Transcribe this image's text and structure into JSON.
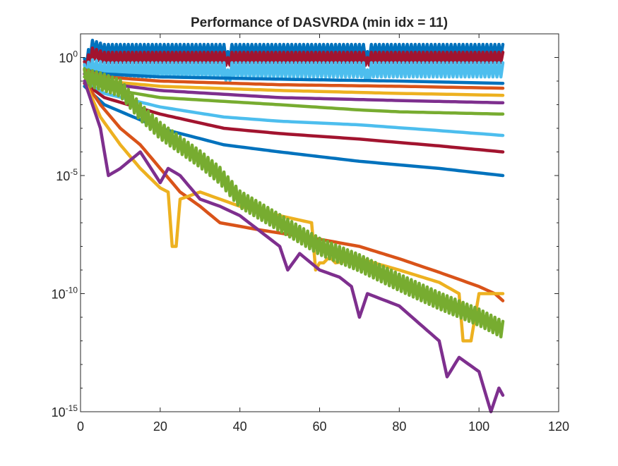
{
  "chart_data": {
    "type": "line",
    "title": "Performance of DASVRDA (min idx = 11)",
    "xlabel": "",
    "ylabel": "",
    "xlim": [
      0,
      120
    ],
    "ylim": [
      1e-15,
      10.0
    ],
    "y_scale": "log",
    "grid": false,
    "legend": "none",
    "x_ticks": [
      0,
      20,
      40,
      60,
      80,
      100,
      120
    ],
    "x_tick_labels": [
      "0",
      "20",
      "40",
      "60",
      "80",
      "100",
      "120"
    ],
    "y_ticks": [
      1e-15,
      1e-10,
      1e-05,
      1
    ],
    "y_tick_labels": [
      {
        "base": "10",
        "exp": "-15"
      },
      {
        "base": "10",
        "exp": "-10"
      },
      {
        "base": "10",
        "exp": "-5"
      },
      {
        "base": "10",
        "exp": "0"
      }
    ],
    "series": [
      {
        "color": "#0072BD",
        "oscillating": true,
        "amplitude": 0.25,
        "points": [
          [
            1,
            0.5
          ],
          [
            3,
            3
          ],
          [
            6,
            2
          ],
          [
            36,
            2
          ],
          [
            37,
            1
          ],
          [
            38,
            2
          ],
          [
            71,
            2
          ],
          [
            72,
            1
          ],
          [
            73,
            2
          ],
          [
            106,
            2
          ]
        ]
      },
      {
        "color": "#A2142F",
        "oscillating": true,
        "amplitude": 0.22,
        "points": [
          [
            1,
            0.4
          ],
          [
            3,
            1.5
          ],
          [
            6,
            1
          ],
          [
            36,
            1
          ],
          [
            37,
            0.6
          ],
          [
            38,
            1
          ],
          [
            71,
            1
          ],
          [
            72,
            0.6
          ],
          [
            73,
            1
          ],
          [
            106,
            1
          ]
        ]
      },
      {
        "color": "#4DBEEE",
        "oscillating": true,
        "amplitude": 0.3,
        "points": [
          [
            1,
            0.25
          ],
          [
            3,
            0.4
          ],
          [
            6,
            0.3
          ],
          [
            36,
            0.3
          ],
          [
            37,
            0.15
          ],
          [
            38,
            0.3
          ],
          [
            71,
            0.3
          ],
          [
            72,
            0.15
          ],
          [
            73,
            0.3
          ],
          [
            106,
            0.3
          ]
        ]
      },
      {
        "color": "#0072BD",
        "points": [
          [
            1,
            0.3
          ],
          [
            6,
            0.2
          ],
          [
            20,
            0.15
          ],
          [
            50,
            0.12
          ],
          [
            80,
            0.1
          ],
          [
            106,
            0.08
          ]
        ]
      },
      {
        "color": "#D95319",
        "points": [
          [
            1,
            0.3
          ],
          [
            6,
            0.15
          ],
          [
            20,
            0.1
          ],
          [
            50,
            0.07
          ],
          [
            80,
            0.06
          ],
          [
            106,
            0.05
          ]
        ]
      },
      {
        "color": "#EDB120",
        "points": [
          [
            1,
            0.2
          ],
          [
            6,
            0.1
          ],
          [
            20,
            0.06
          ],
          [
            50,
            0.04
          ],
          [
            80,
            0.03
          ],
          [
            106,
            0.025
          ]
        ]
      },
      {
        "color": "#7E2F8E",
        "points": [
          [
            1,
            0.2
          ],
          [
            6,
            0.08
          ],
          [
            20,
            0.04
          ],
          [
            50,
            0.02
          ],
          [
            80,
            0.015
          ],
          [
            106,
            0.012
          ]
        ]
      },
      {
        "color": "#77AC30",
        "points": [
          [
            1,
            0.15
          ],
          [
            6,
            0.05
          ],
          [
            20,
            0.02
          ],
          [
            50,
            0.01
          ],
          [
            70,
            0.006
          ],
          [
            80,
            0.005
          ],
          [
            106,
            0.004
          ]
        ]
      },
      {
        "color": "#4DBEEE",
        "points": [
          [
            1,
            0.1
          ],
          [
            6,
            0.03
          ],
          [
            20,
            0.008
          ],
          [
            36,
            0.003
          ],
          [
            50,
            0.002
          ],
          [
            70,
            0.0014
          ],
          [
            90,
            0.0008
          ],
          [
            106,
            0.0005
          ]
        ]
      },
      {
        "color": "#A2142F",
        "points": [
          [
            1,
            0.08
          ],
          [
            6,
            0.02
          ],
          [
            20,
            0.004
          ],
          [
            36,
            0.001
          ],
          [
            50,
            0.0006
          ],
          [
            70,
            0.00035
          ],
          [
            90,
            0.00018
          ],
          [
            106,
            0.0001
          ]
        ]
      },
      {
        "color": "#0072BD",
        "points": [
          [
            1,
            0.06
          ],
          [
            6,
            0.01
          ],
          [
            20,
            0.001
          ],
          [
            36,
            0.0002
          ],
          [
            50,
            0.0001
          ],
          [
            70,
            4e-05
          ],
          [
            90,
            2e-05
          ],
          [
            106,
            1e-05
          ]
        ]
      },
      {
        "color": "#D95319",
        "points": [
          [
            1,
            0.1
          ],
          [
            5,
            0.01
          ],
          [
            10,
            0.001
          ],
          [
            15,
            0.0002
          ],
          [
            20,
            2e-05
          ],
          [
            25,
            2e-06
          ],
          [
            30,
            5e-07
          ],
          [
            35,
            1e-07
          ],
          [
            45,
            5e-08
          ],
          [
            60,
            2e-08
          ],
          [
            70,
            1e-08
          ],
          [
            80,
            3e-09
          ],
          [
            90,
            8e-10
          ],
          [
            100,
            2e-10
          ],
          [
            104,
            1e-10
          ],
          [
            106,
            5e-11
          ]
        ]
      },
      {
        "color": "#EDB120",
        "points": [
          [
            1,
            0.1
          ],
          [
            5,
            0.003
          ],
          [
            10,
            0.0002
          ],
          [
            15,
            2e-05
          ],
          [
            20,
            3e-06
          ],
          [
            22,
            2e-06
          ],
          [
            23,
            1e-08
          ],
          [
            24,
            1e-08
          ],
          [
            25,
            1e-06
          ],
          [
            30,
            2e-06
          ],
          [
            40,
            5e-07
          ],
          [
            50,
            2e-07
          ],
          [
            58,
            1e-07
          ],
          [
            59,
            1e-09
          ],
          [
            60,
            2e-09
          ],
          [
            61,
            2e-09
          ],
          [
            62,
            3e-09
          ],
          [
            63,
            3e-09
          ],
          [
            64,
            2e-09
          ],
          [
            70,
            3e-09
          ],
          [
            80,
            1e-09
          ],
          [
            90,
            3e-10
          ],
          [
            95,
            1e-10
          ],
          [
            96,
            1e-12
          ],
          [
            98,
            1e-12
          ],
          [
            100,
            1e-10
          ],
          [
            106,
            1e-10
          ]
        ]
      },
      {
        "color": "#77AC30",
        "oscillating": true,
        "amplitude": 0.35,
        "points": [
          [
            1,
            0.15
          ],
          [
            5,
            0.1
          ],
          [
            10,
            0.05
          ],
          [
            15,
            0.005
          ],
          [
            20,
            0.0008
          ],
          [
            25,
            0.0002
          ],
          [
            30,
            5e-05
          ],
          [
            35,
            1e-05
          ],
          [
            40,
            1e-06
          ],
          [
            50,
            1e-07
          ],
          [
            60,
            1e-08
          ],
          [
            70,
            2e-09
          ],
          [
            80,
            3e-10
          ],
          [
            90,
            5e-11
          ],
          [
            100,
            1e-11
          ],
          [
            106,
            3e-12
          ]
        ]
      },
      {
        "color": "#7E2F8E",
        "points": [
          [
            1,
            0.1
          ],
          [
            5,
            0.001
          ],
          [
            7,
            1e-05
          ],
          [
            10,
            2e-05
          ],
          [
            15,
            0.0001
          ],
          [
            20,
            5e-06
          ],
          [
            22,
            2e-05
          ],
          [
            25,
            1e-05
          ],
          [
            30,
            1e-06
          ],
          [
            35,
            5e-07
          ],
          [
            40,
            2e-07
          ],
          [
            50,
            1e-08
          ],
          [
            52,
            1e-09
          ],
          [
            55,
            5e-09
          ],
          [
            60,
            1e-09
          ],
          [
            65,
            5e-10
          ],
          [
            68,
            2e-10
          ],
          [
            70,
            1e-11
          ],
          [
            72,
            1e-10
          ],
          [
            80,
            3e-11
          ],
          [
            90,
            1e-12
          ],
          [
            92,
            3e-14
          ],
          [
            95,
            2e-13
          ],
          [
            100,
            5e-14
          ],
          [
            103,
            1e-15
          ],
          [
            105,
            1e-14
          ],
          [
            106,
            5e-15
          ]
        ]
      }
    ]
  }
}
